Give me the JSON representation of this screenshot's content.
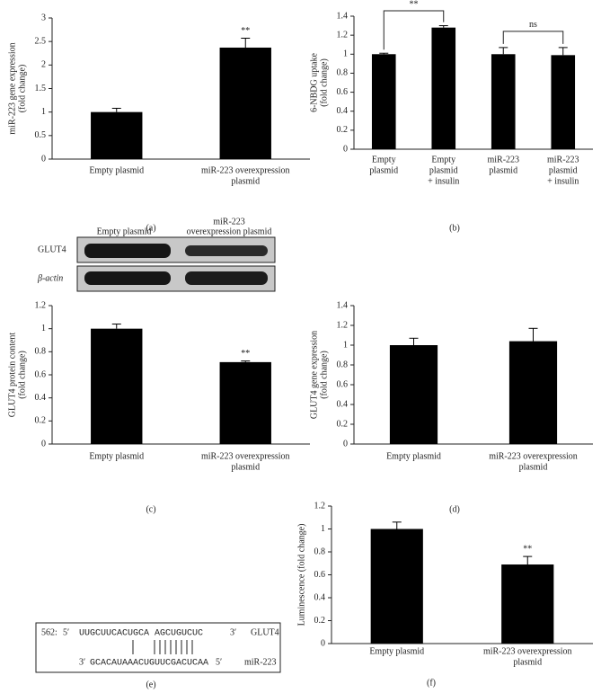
{
  "chart_data": [
    {
      "type": "bar",
      "caption": "(a)",
      "ylabel": [
        "miR-223 gene expression",
        "(fold change)"
      ],
      "categories": [
        [
          "Empty plasmid"
        ],
        [
          "miR-223 overexpression",
          "plasmid"
        ]
      ],
      "values": [
        1.0,
        2.37
      ],
      "errors": [
        0.08,
        0.2
      ],
      "color": "#000000",
      "ylim": [
        0,
        3
      ],
      "yticks": [
        0,
        0.5,
        1,
        1.5,
        2,
        2.5,
        3
      ],
      "annotation": "**"
    },
    {
      "type": "bar",
      "caption": "(b)",
      "ylabel": [
        "6-NBDG uptake",
        "(fold change)"
      ],
      "categories": [
        [
          "Empty",
          "plasmid"
        ],
        [
          "Empty",
          "plasmid",
          "+ insulin"
        ],
        [
          "miR-223",
          "plasmid"
        ],
        [
          "miR-223",
          "plasmid",
          "+ insulin"
        ]
      ],
      "values": [
        1.0,
        1.28,
        1.0,
        0.99
      ],
      "errors": [
        0.01,
        0.02,
        0.07,
        0.08
      ],
      "color": "#000000",
      "ylim": [
        0,
        1.4
      ],
      "yticks": [
        0,
        0.2,
        0.4,
        0.6,
        0.8,
        1,
        1.2,
        1.4
      ],
      "brackets": [
        "**",
        "ns"
      ]
    },
    {
      "type": "bar",
      "caption": "(c)",
      "ylabel": [
        "GLUT4 protein content",
        "(fold change)"
      ],
      "categories": [
        [
          "Empty plasmid"
        ],
        [
          "miR-223 overexpression",
          "plasmid"
        ]
      ],
      "values": [
        1.0,
        0.71
      ],
      "errors": [
        0.04,
        0.01
      ],
      "color": "#000000",
      "ylim": [
        0,
        1.2
      ],
      "yticks": [
        0,
        0.2,
        0.4,
        0.6,
        0.8,
        1,
        1.2
      ],
      "annotation": "**"
    },
    {
      "type": "bar",
      "caption": "(d)",
      "ylabel": [
        "GLUT4 gene expression",
        "(fold change)"
      ],
      "categories": [
        [
          "Empty plasmid"
        ],
        [
          "miR-223 overexpression",
          "plasmid"
        ]
      ],
      "values": [
        1.0,
        1.04
      ],
      "errors": [
        0.07,
        0.13
      ],
      "color": "#000000",
      "ylim": [
        0,
        1.4
      ],
      "yticks": [
        0,
        0.2,
        0.4,
        0.6,
        0.8,
        1,
        1.2,
        1.4
      ]
    },
    {
      "type": "bar",
      "caption": "(f)",
      "ylabel": [
        "Luminescence (fold change)"
      ],
      "categories": [
        [
          "Empty plasmid"
        ],
        [
          "miR-223 overexpression",
          "plasmid"
        ]
      ],
      "values": [
        1.0,
        0.69
      ],
      "errors": [
        0.06,
        0.07
      ],
      "color": "#000000",
      "ylim": [
        0,
        1.2
      ],
      "yticks": [
        0,
        0.2,
        0.4,
        0.6,
        0.8,
        1,
        1.2
      ],
      "annotation": "**"
    }
  ],
  "blot": {
    "lanes": [
      [
        "Empty plasmid"
      ],
      [
        "miR-223",
        "overexpression plasmid"
      ]
    ],
    "rows": [
      "GLUT4",
      "β-actin"
    ]
  },
  "sequence": {
    "caption": "(e)",
    "position": "562:",
    "top": {
      "end5": "5′",
      "seq": "UUGCUUCACUGCA AGCUGUCUC",
      "end3": "3′",
      "name": "GLUT4"
    },
    "bottom": {
      "end3": "3′",
      "seq": "GCACAUAAACUGUUCGACUCAA",
      "end5": "5′",
      "name": "miR-223"
    }
  }
}
